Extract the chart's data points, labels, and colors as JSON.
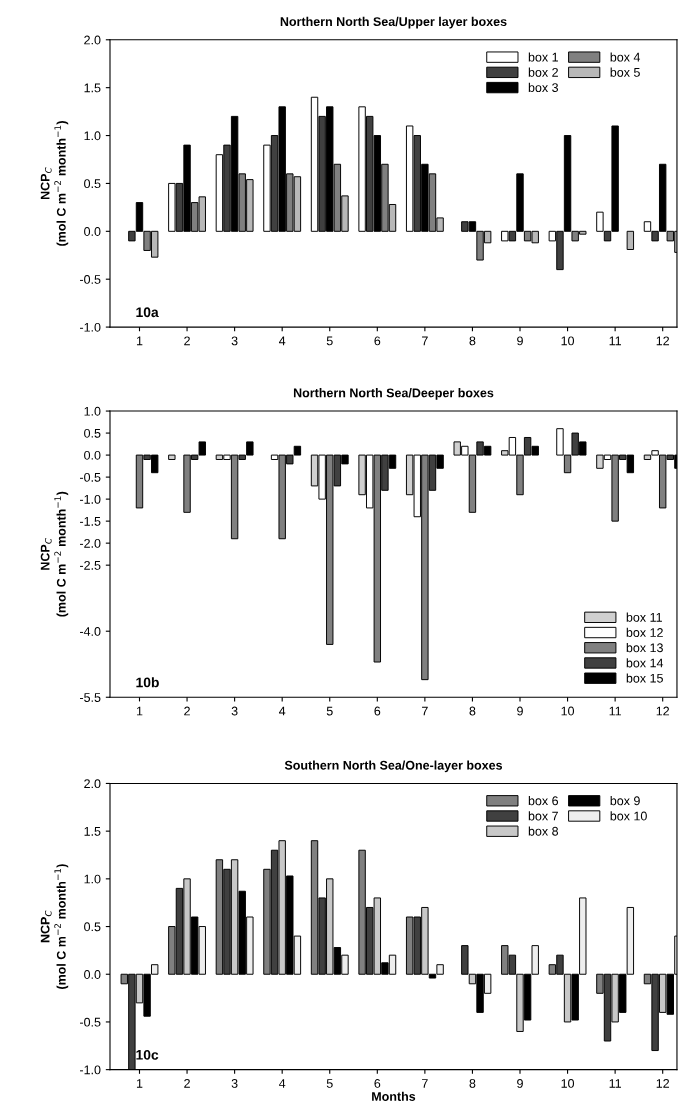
{
  "chart_data": [
    {
      "type": "bar",
      "title": "Northern North Sea/Upper layer boxes",
      "ylabel": "NCP$_{C}$\n(mol C m$^{−2}$ month$^{−1}$)",
      "annotations": [
        "10a"
      ],
      "categories": [
        "1",
        "2",
        "3",
        "4",
        "5",
        "6",
        "7",
        "8",
        "9",
        "10",
        "11",
        "12"
      ],
      "ylim": [
        -1.0,
        2.0
      ],
      "yticks": [
        {
          "value": -1.0,
          "label": "-1.0"
        },
        {
          "value": -0.5,
          "label": "-0.5"
        },
        {
          "value": 0.0,
          "label": "0.0"
        },
        {
          "value": 0.5,
          "label": "0.5"
        },
        {
          "value": 1.0,
          "label": "1.0"
        },
        {
          "value": 1.5,
          "label": "1.5"
        },
        {
          "value": 2.0,
          "label": "2.0"
        }
      ],
      "legend": "top right",
      "series": [
        {
          "name": "box 1",
          "color": "#ffffff",
          "values": [
            null,
            0.5,
            0.8,
            0.9,
            1.4,
            1.3,
            1.1,
            null,
            -0.1,
            -0.1,
            0.2,
            0.1
          ]
        },
        {
          "name": "box 2",
          "color": "#404040",
          "values": [
            -0.1,
            0.5,
            0.9,
            1.0,
            1.2,
            1.2,
            1.0,
            0.1,
            -0.1,
            -0.4,
            -0.1,
            -0.1
          ]
        },
        {
          "name": "box 3",
          "color": "#000000",
          "values": [
            0.3,
            0.9,
            1.2,
            1.3,
            1.3,
            1.0,
            0.7,
            0.1,
            0.6,
            1.0,
            1.1,
            0.7
          ]
        },
        {
          "name": "box 4",
          "color": "#808080",
          "values": [
            -0.2,
            0.3,
            0.6,
            0.6,
            0.7,
            0.7,
            0.6,
            -0.3,
            -0.1,
            -0.1,
            null,
            -0.1
          ]
        },
        {
          "name": "box 5",
          "color": "#b8b8b8",
          "values": [
            -0.27,
            0.36,
            0.54,
            0.57,
            0.37,
            0.28,
            0.14,
            -0.12,
            -0.12,
            -0.03,
            -0.19,
            -0.22
          ]
        }
      ]
    },
    {
      "type": "bar",
      "title": "Northern North Sea/Deeper boxes",
      "ylabel": "NCP$_{C}$\n(mol C m$^{−2}$ month$^{−1}$)",
      "annotations": [
        "10b"
      ],
      "categories": [
        "1",
        "2",
        "3",
        "4",
        "5",
        "6",
        "7",
        "8",
        "9",
        "10",
        "11",
        "12"
      ],
      "ylim": [
        -5.5,
        1.0
      ],
      "yticks": [
        {
          "value": -5.5,
          "label": "-5.5"
        },
        {
          "value": -4.0,
          "label": "-4.0"
        },
        {
          "value": -2.5,
          "label": "-2.5"
        },
        {
          "value": -2.0,
          "label": "-2.0"
        },
        {
          "value": -1.5,
          "label": "-1.5"
        },
        {
          "value": -1.0,
          "label": "-1.0"
        },
        {
          "value": -0.5,
          "label": "-0.5"
        },
        {
          "value": 0.0,
          "label": "0.0"
        },
        {
          "value": 0.5,
          "label": "0.5"
        },
        {
          "value": 1.0,
          "label": "1.0"
        }
      ],
      "legend": "bottom right",
      "series": [
        {
          "name": "box 11",
          "color": "#d0d0d0",
          "values": [
            null,
            -0.1,
            -0.1,
            null,
            -0.7,
            -0.9,
            -0.9,
            0.3,
            0.1,
            null,
            -0.3,
            -0.1
          ]
        },
        {
          "name": "box 12",
          "color": "#ffffff",
          "values": [
            null,
            null,
            -0.1,
            -0.1,
            -1.0,
            -1.2,
            -1.4,
            0.2,
            0.4,
            0.6,
            -0.1,
            0.1
          ]
        },
        {
          "name": "box 13",
          "color": "#808080",
          "values": [
            -1.2,
            -1.3,
            -1.9,
            -1.9,
            -4.3,
            -4.7,
            -5.1,
            -1.3,
            -0.9,
            -0.4,
            -1.5,
            -1.2
          ]
        },
        {
          "name": "box 14",
          "color": "#404040",
          "values": [
            -0.1,
            -0.1,
            -0.1,
            -0.2,
            -0.7,
            -0.8,
            -0.8,
            0.3,
            0.4,
            0.5,
            -0.1,
            -0.1
          ]
        },
        {
          "name": "box 15",
          "color": "#000000",
          "values": [
            -0.4,
            0.3,
            0.3,
            0.2,
            -0.2,
            -0.3,
            -0.3,
            0.2,
            0.2,
            0.3,
            -0.4,
            -0.3
          ]
        }
      ]
    },
    {
      "type": "bar",
      "title": "Southern North Sea/One-layer boxes",
      "xlabel": "Months",
      "ylabel": "NCP$_{C}$\n(mol C m$^{−2}$ month$^{−1}$)",
      "annotations": [
        "10c"
      ],
      "categories": [
        "1",
        "2",
        "3",
        "4",
        "5",
        "6",
        "7",
        "8",
        "9",
        "10",
        "11",
        "12"
      ],
      "ylim": [
        -1.0,
        2.0
      ],
      "yticks": [
        {
          "value": -1.0,
          "label": "-1.0"
        },
        {
          "value": -0.5,
          "label": "-0.5"
        },
        {
          "value": 0.0,
          "label": "0.0"
        },
        {
          "value": 0.5,
          "label": "0.5"
        },
        {
          "value": 1.0,
          "label": "1.0"
        },
        {
          "value": 1.5,
          "label": "1.5"
        },
        {
          "value": 2.0,
          "label": "2.0"
        }
      ],
      "legend": "top right",
      "series": [
        {
          "name": "box 6",
          "color": "#808080",
          "values": [
            -0.1,
            0.5,
            1.2,
            1.1,
            1.4,
            1.3,
            0.6,
            null,
            0.3,
            0.1,
            -0.2,
            -0.1
          ]
        },
        {
          "name": "box 7",
          "color": "#404040",
          "values": [
            -1.0,
            0.9,
            1.1,
            1.3,
            0.8,
            0.7,
            0.6,
            0.3,
            0.2,
            0.2,
            -0.7,
            -0.8
          ]
        },
        {
          "name": "box 8",
          "color": "#c8c8c8",
          "values": [
            -0.3,
            1.0,
            1.2,
            1.4,
            1.0,
            0.8,
            0.7,
            -0.1,
            -0.6,
            -0.5,
            -0.5,
            -0.4
          ]
        },
        {
          "name": "box 9",
          "color": "#000000",
          "values": [
            -0.44,
            0.6,
            0.87,
            1.03,
            0.28,
            0.12,
            -0.04,
            -0.4,
            -0.48,
            -0.48,
            -0.4,
            -0.42
          ]
        },
        {
          "name": "box 10",
          "color": "#eeeeee",
          "values": [
            0.1,
            0.5,
            0.6,
            0.4,
            0.2,
            0.2,
            0.1,
            -0.2,
            0.3,
            0.8,
            0.7,
            0.4
          ]
        }
      ]
    }
  ]
}
